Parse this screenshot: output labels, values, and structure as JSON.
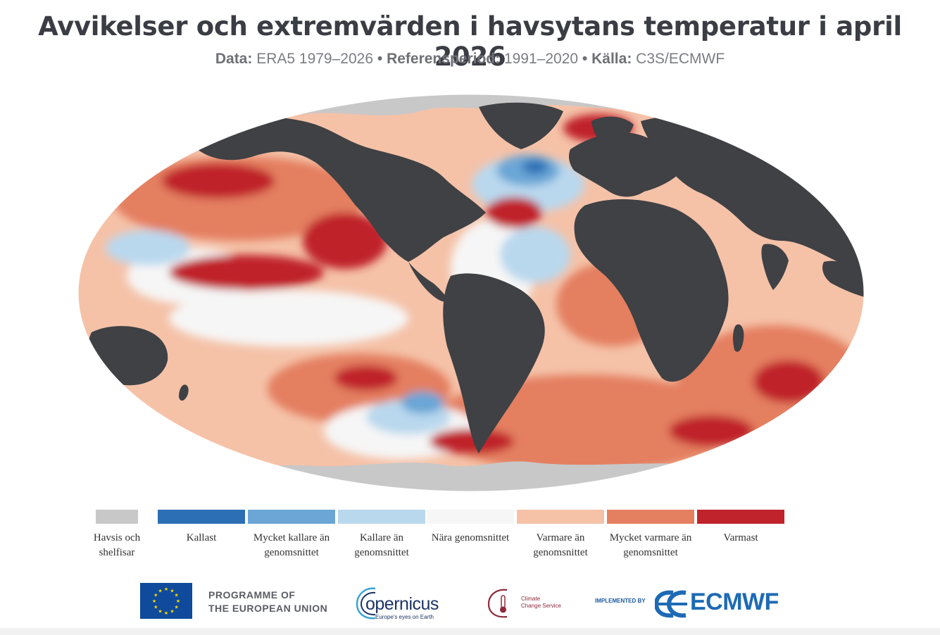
{
  "title": "Avvikelser och extremvärden i havsytans temperatur i april 2026",
  "subtitle": {
    "data_key": "Data:",
    "data_val": "ERA5 1979–2026",
    "sep1": "•",
    "ref_key": "Referensperiod:",
    "ref_val": "1991–2020",
    "sep2": "•",
    "src_key": "Källa:",
    "src_val": "C3S/ECMWF"
  },
  "colors": {
    "land": "#3f4144",
    "sea_ice": "#c8c8c8",
    "coldest": "#2c6fb5",
    "much_colder": "#6ba6d6",
    "colder": "#b9d8ee",
    "near": "#f6f6f6",
    "warmer": "#f5c2a8",
    "much_warmer": "#e47f60",
    "warmest": "#c0232c"
  },
  "legend": [
    {
      "label": "Havsis och shelfisar",
      "color": "#c8c8c8"
    },
    {
      "label": "Kallast",
      "color": "#2c6fb5"
    },
    {
      "label": "Mycket kallare än genomsnittet",
      "color": "#6ba6d6"
    },
    {
      "label": "Kallare än genomsnittet",
      "color": "#b9d8ee"
    },
    {
      "label": "Nära genomsnittet",
      "color": "#f6f6f6"
    },
    {
      "label": "Varmare än genomsnittet",
      "color": "#f5c2a8"
    },
    {
      "label": "Mycket varmare än genomsnittet",
      "color": "#e47f60"
    },
    {
      "label": "Varmast",
      "color": "#c0232c"
    }
  ],
  "logos": {
    "eu_line1": "PROGRAMME OF",
    "eu_line2": "THE EUROPEAN UNION",
    "copernicus": "opernicus",
    "copernicus_tagline": "Europe's eyes on Earth",
    "c3s_line1": "Climate",
    "c3s_line2": "Change Service",
    "implemented_by": "IMPLEMENTED BY",
    "ecmwf": "ECMWF"
  }
}
